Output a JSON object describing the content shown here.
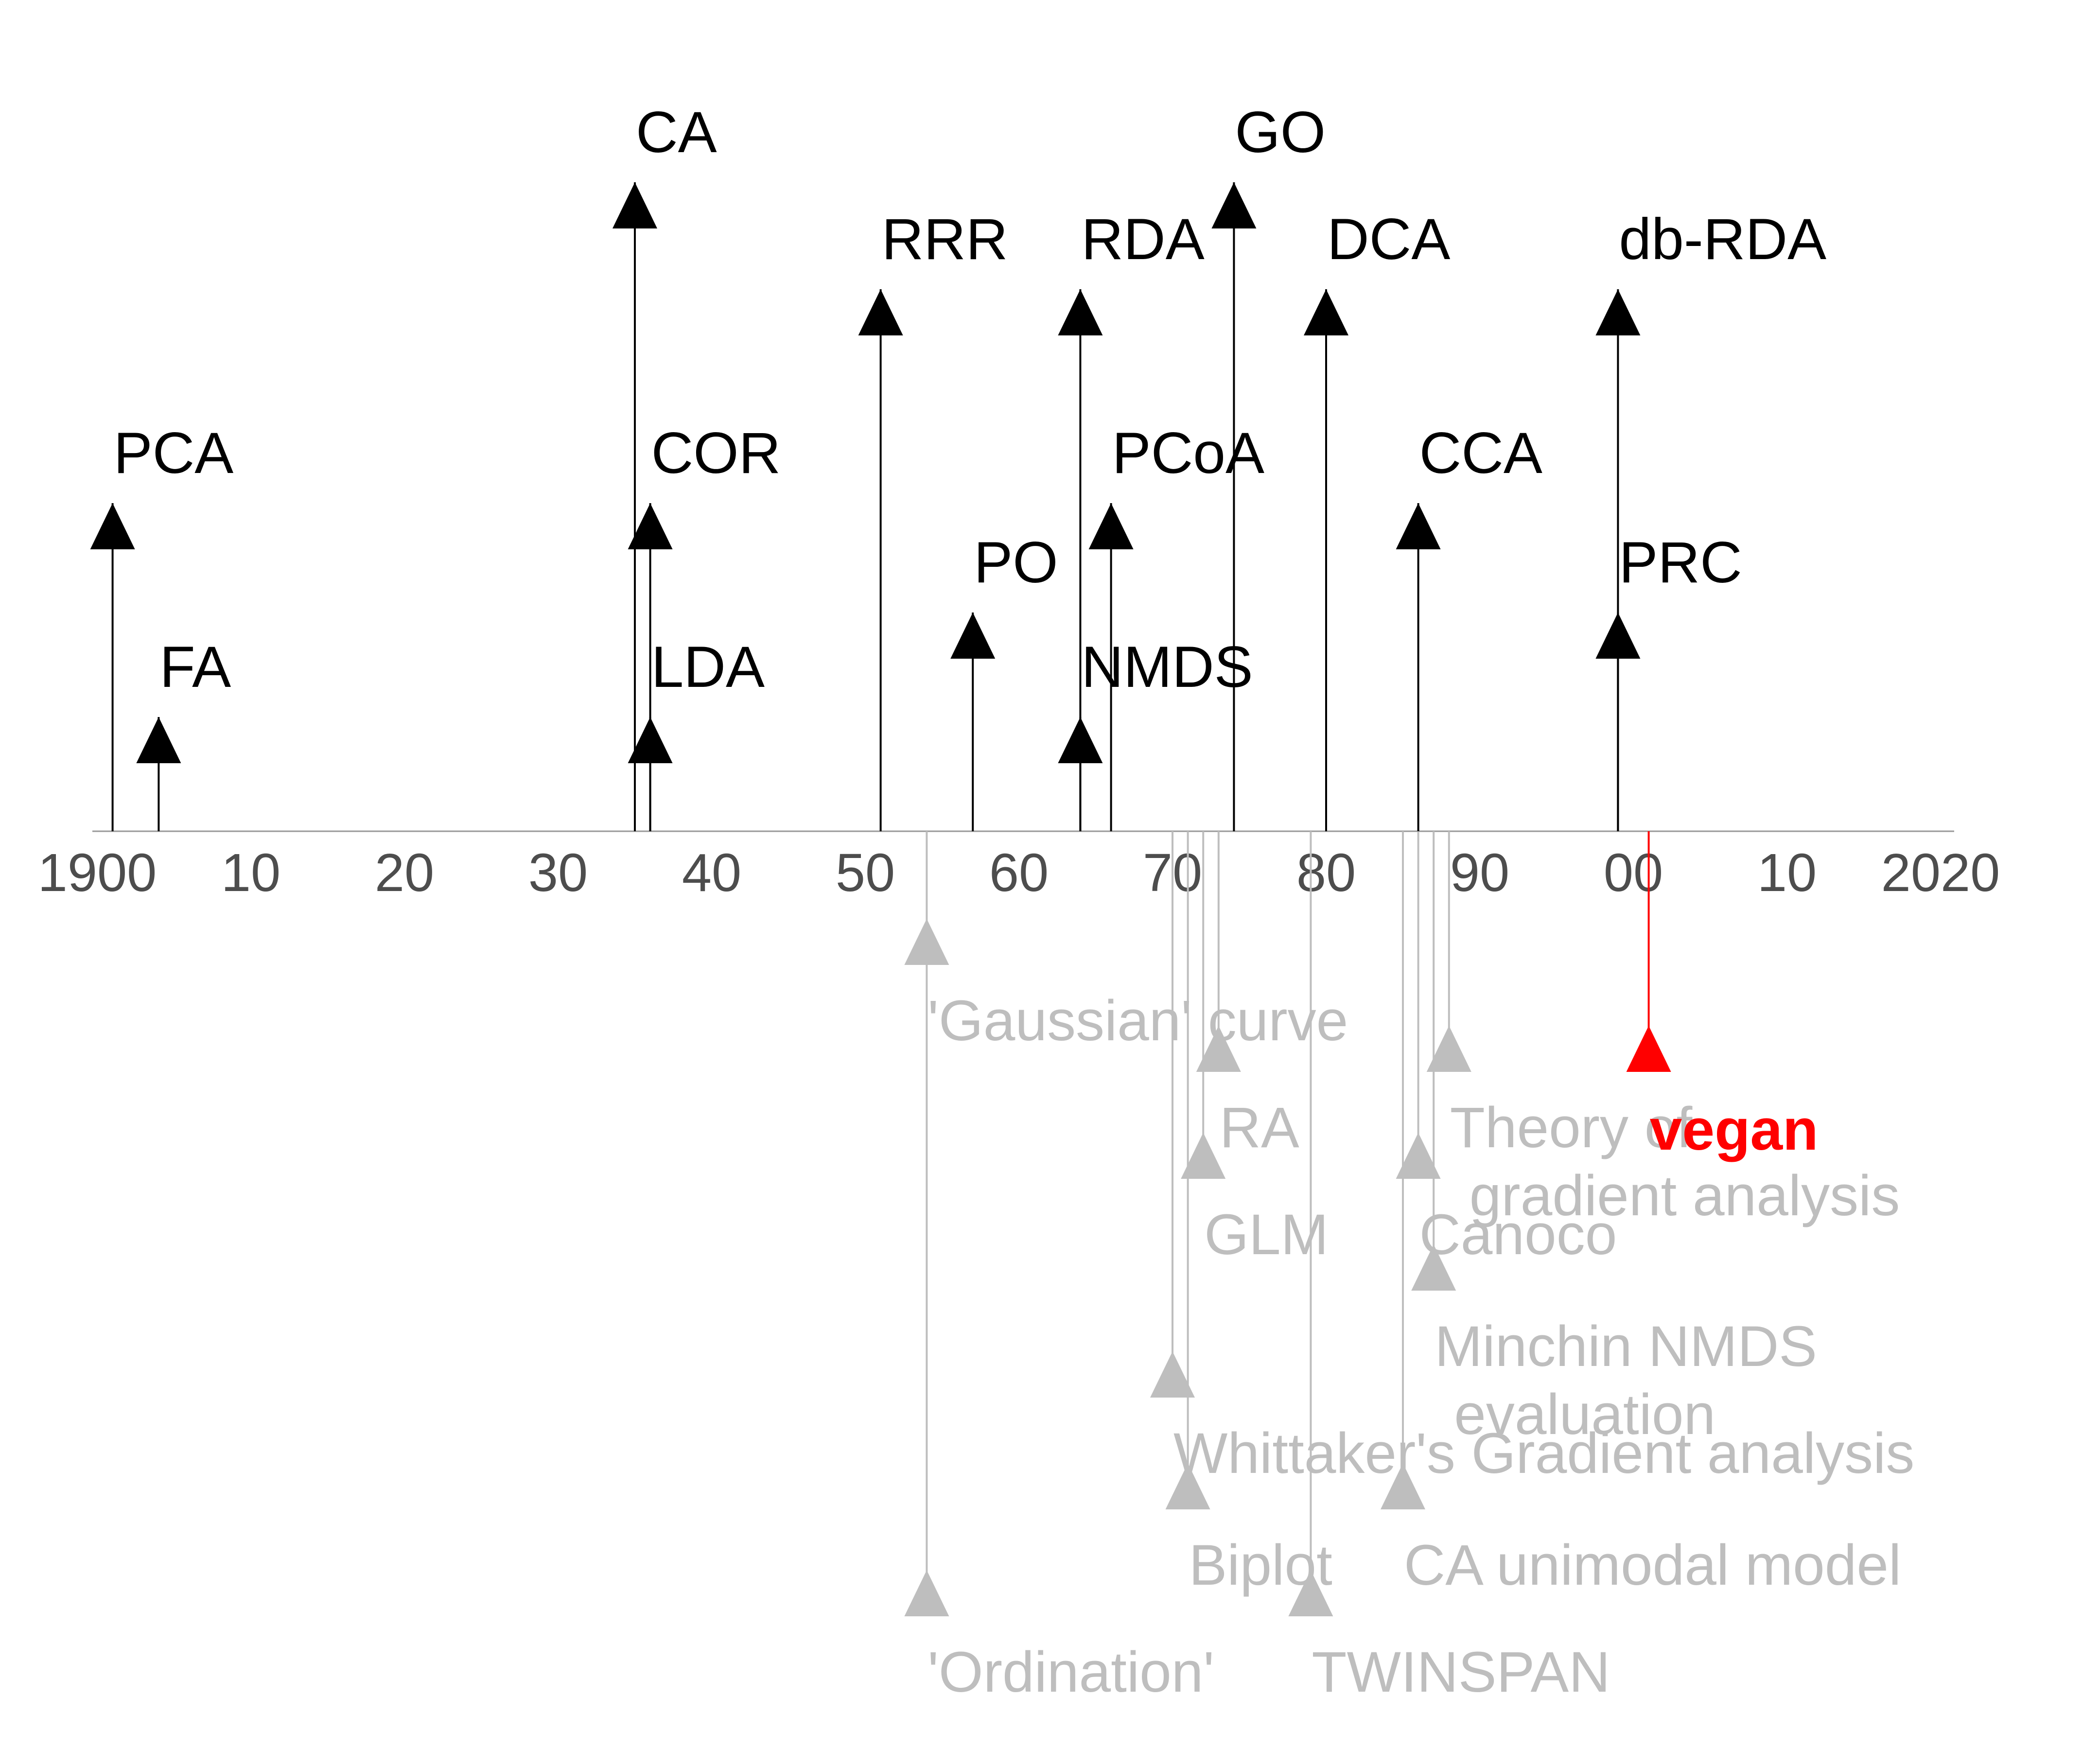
{
  "chart_data": {
    "type": "timeline",
    "title": "",
    "xlabel": "",
    "ylabel": "",
    "xlim": [
      1900,
      2020
    ],
    "grid": false,
    "tick_labels": [
      "1900",
      "10",
      "20",
      "30",
      "40",
      "50",
      "60",
      "70",
      "80",
      "90",
      "00",
      "10",
      "2020"
    ],
    "tick_years": [
      1900,
      1910,
      1920,
      1930,
      1940,
      1950,
      1960,
      1970,
      1980,
      1990,
      2000,
      2010,
      2020
    ],
    "colors": {
      "methods": "#000000",
      "context": "#bebebe",
      "highlight": "#ff0000",
      "axis": "#999999",
      "ticks": "#4d4d4d"
    },
    "methods": [
      {
        "label": "PCA",
        "year": 1901,
        "level": 3
      },
      {
        "label": "FA",
        "year": 1904,
        "level": 1
      },
      {
        "label": "CA",
        "year": 1935,
        "level": 6
      },
      {
        "label": "COR",
        "year": 1936,
        "level": 3
      },
      {
        "label": "LDA",
        "year": 1936,
        "level": 1
      },
      {
        "label": "RRR",
        "year": 1951,
        "level": 5
      },
      {
        "label": "PO",
        "year": 1957,
        "level": 2
      },
      {
        "label": "RDA",
        "year": 1964,
        "level": 5
      },
      {
        "label": "NMDS",
        "year": 1964,
        "level": 1
      },
      {
        "label": "PCoA",
        "year": 1966,
        "level": 3
      },
      {
        "label": "GO",
        "year": 1974,
        "level": 6
      },
      {
        "label": "DCA",
        "year": 1980,
        "level": 5
      },
      {
        "label": "CCA",
        "year": 1986,
        "level": 3
      },
      {
        "label": "db-RDA",
        "year": 1999,
        "level": 5
      },
      {
        "label": "PRC",
        "year": 1999,
        "level": 2
      }
    ],
    "context": [
      {
        "label": [
          "'Gaussian' curve"
        ],
        "year": 1954,
        "depth": 1
      },
      {
        "label": [
          "'Ordination'"
        ],
        "year": 1954,
        "depth": 7
      },
      {
        "label": [
          "RA"
        ],
        "year": 1973,
        "depth": 2
      },
      {
        "label": [
          "GLM"
        ],
        "year": 1972,
        "depth": 3
      },
      {
        "label": [
          "Whittaker's Gradient analysis"
        ],
        "year": 1970,
        "depth": 5
      },
      {
        "label": [
          "Biplot"
        ],
        "year": 1971,
        "depth": 6
      },
      {
        "label": [
          "TWINSPAN"
        ],
        "year": 1979,
        "depth": 7
      },
      {
        "label": [
          "Theory of",
          "gradient analysis"
        ],
        "year": 1988,
        "depth": 2
      },
      {
        "label": [
          "Canoco"
        ],
        "year": 1986,
        "depth": 3
      },
      {
        "label": [
          "Minchin NMDS",
          "evaluation"
        ],
        "year": 1987,
        "depth": 4
      },
      {
        "label": [
          "CA unimodal model"
        ],
        "year": 1985,
        "depth": 6
      }
    ],
    "highlight": {
      "label": "vegan",
      "year": 2001,
      "depth": 2
    }
  }
}
